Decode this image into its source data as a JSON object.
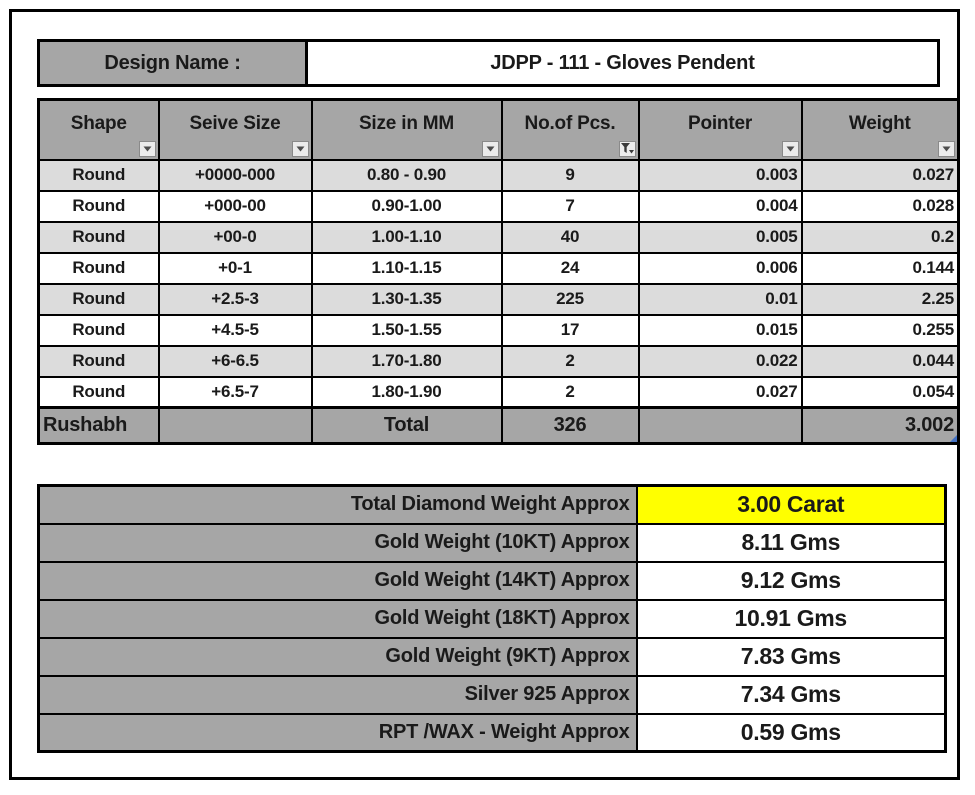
{
  "design": {
    "label": "Design Name :",
    "value": "JDPP - 111 - Gloves Pendent"
  },
  "diamond_table": {
    "columns": [
      {
        "label": "Shape",
        "align": "center",
        "filter_icon": "filter-dropdown-arrow"
      },
      {
        "label": "Seive Size",
        "align": "center",
        "filter_icon": "filter-dropdown-arrow"
      },
      {
        "label": "Size in MM",
        "align": "center",
        "filter_icon": "filter-dropdown-arrow"
      },
      {
        "label": "No.of Pcs.",
        "align": "center",
        "filter_icon": "filter-funnel-active"
      },
      {
        "label": "Pointer",
        "align": "right",
        "filter_icon": "filter-dropdown-arrow"
      },
      {
        "label": "Weight",
        "align": "right",
        "filter_icon": "filter-dropdown-arrow"
      }
    ],
    "column_aligns": [
      "center",
      "center",
      "center",
      "center",
      "right",
      "right"
    ],
    "rows": [
      [
        "Round",
        "+0000-000",
        "0.80 - 0.90",
        "9",
        "0.003",
        "0.027"
      ],
      [
        "Round",
        "+000-00",
        "0.90-1.00",
        "7",
        "0.004",
        "0.028"
      ],
      [
        "Round",
        "+00-0",
        "1.00-1.10",
        "40",
        "0.005",
        "0.2"
      ],
      [
        "Round",
        "+0-1",
        "1.10-1.15",
        "24",
        "0.006",
        "0.144"
      ],
      [
        "Round",
        "+2.5-3",
        "1.30-1.35",
        "225",
        "0.01",
        "2.25"
      ],
      [
        "Round",
        "+4.5-5",
        "1.50-1.55",
        "17",
        "0.015",
        "0.255"
      ],
      [
        "Round",
        "+6-6.5",
        "1.70-1.80",
        "2",
        "0.022",
        "0.044"
      ],
      [
        "Round",
        "+6.5-7",
        "1.80-1.90",
        "2",
        "0.027",
        "0.054"
      ]
    ],
    "total_row": {
      "cells": [
        "Rushabh",
        "",
        "Total",
        "326",
        "",
        "3.002"
      ],
      "aligns": [
        "left",
        "center",
        "center",
        "center",
        "center",
        "right"
      ]
    }
  },
  "summary": {
    "rows": [
      {
        "label": "Total Diamond Weight Approx",
        "value": "3.00 Carat",
        "highlight": true
      },
      {
        "label": "Gold Weight (10KT) Approx",
        "value": "8.11 Gms",
        "highlight": false
      },
      {
        "label": "Gold Weight (14KT) Approx",
        "value": "9.12 Gms",
        "highlight": false
      },
      {
        "label": "Gold Weight (18KT) Approx",
        "value": "10.91 Gms",
        "highlight": false
      },
      {
        "label": "Gold Weight (9KT) Approx",
        "value": "7.83 Gms",
        "highlight": false
      },
      {
        "label": "Silver 925 Approx",
        "value": "7.34 Gms",
        "highlight": false
      },
      {
        "label": "RPT /WAX - Weight Approx",
        "value": "0.59 Gms",
        "highlight": false
      }
    ]
  },
  "colors": {
    "header_gray": "#a6a6a6",
    "band_gray": "#dcdcdc",
    "highlight_yellow": "#ffff00",
    "border_black": "#000000",
    "filter_range_marker_blue": "#4472c4"
  }
}
